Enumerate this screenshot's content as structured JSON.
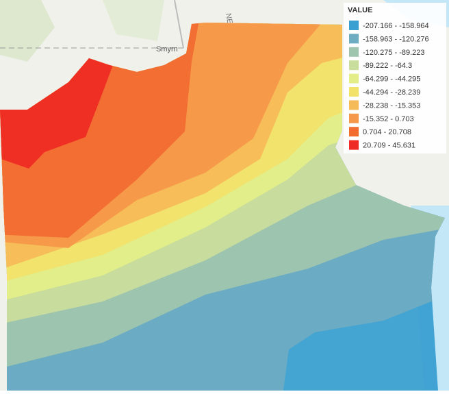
{
  "map_labels": [
    "Smyrn",
    "NEW"
  ],
  "legend": {
    "title": "VALUE",
    "items": [
      {
        "label": "-207.166 - -158.964",
        "color": "#3a9fd1"
      },
      {
        "label": "-158.963 - -120.276",
        "color": "#6eacc2"
      },
      {
        "label": "-120.275 - -89.223",
        "color": "#a0c5ae"
      },
      {
        "label": "-89.222 - -64.3",
        "color": "#c9dd9c"
      },
      {
        "label": "-64.299 - -44.295",
        "color": "#e3ee88"
      },
      {
        "label": "-44.294 - -28.239",
        "color": "#f2e26a"
      },
      {
        "label": "-28.238 - -15.353",
        "color": "#f5bb58"
      },
      {
        "label": "-15.352 - 0.703",
        "color": "#f5984a"
      },
      {
        "label": "0.704 - 20.708",
        "color": "#f26c30"
      },
      {
        "label": "20.709 - 45.631",
        "color": "#ee2b24"
      }
    ]
  }
}
